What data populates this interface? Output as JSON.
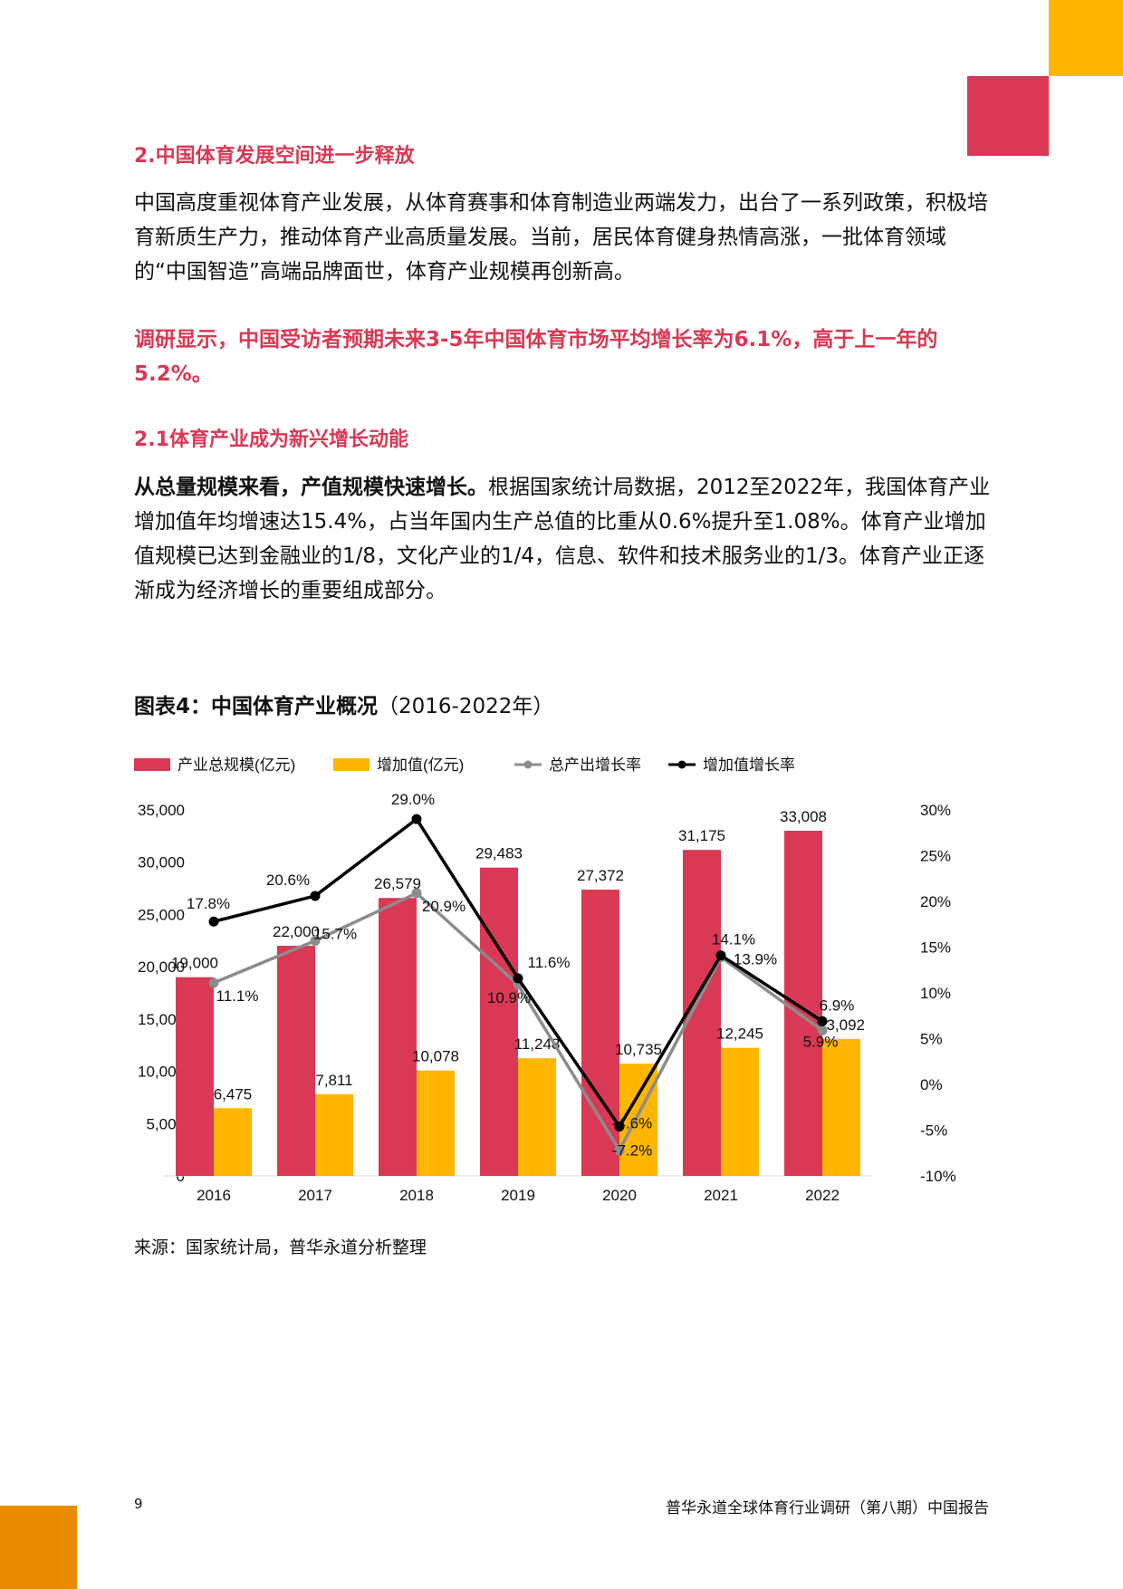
{
  "heading_2": "2.中国体育发展空间进一步释放",
  "paragraph_1": "中国高度重视体育产业发展，从体育赛事和体育制造业两端发力，出台了一系列政策，积极培育新质生产力，推动体育产业高质量发展。当前，居民体育健身热情高涨，一批体育领域的“中国智造”高端品牌面世，体育产业规模再创新高。",
  "highlight": "调研显示，中国受访者预期未来3-5年中国体育市场平均增长率为6.1%，高于上一年的5.2%。",
  "heading_2_1": "2.1体育产业成为新兴增长动能",
  "paragraph_2_bold": "从总量规模来看，产值规模快速增长。",
  "paragraph_2_rest": "根据国家统计局数据，2012至2022年，我国体育产业增加值年均增速达15.4%，占当年国内生产总值的比重从0.6%提升至1.08%。体育产业增加值规模已达到金融业的1/8，文化产业的1/4，信息、软件和技术服务业的1/3。体育产业正逐渐成为经济增长的重要组成部分。",
  "figure_title_bold": "图表4：中国体育产业概况",
  "figure_title_rest": "（2016-2022年）",
  "source": "来源：国家统计局，普华永道分析整理",
  "page_number": "9",
  "footer_title": "普华永道全球体育行业调研（第八期）中国报告",
  "colors": {
    "red": "#D93954",
    "yellow": "#FFB600",
    "orange": "#EB8C00",
    "gray_line": "#8C8C8C",
    "black_line": "#000000"
  },
  "chart_data": {
    "type": "bar",
    "categories": [
      "2016",
      "2017",
      "2018",
      "2019",
      "2020",
      "2021",
      "2022"
    ],
    "series": [
      {
        "name": "产业总规模(亿元)",
        "type": "bar",
        "axis": "left",
        "values": [
          19000,
          22000,
          26579,
          29483,
          27372,
          31175,
          33008
        ],
        "labels": [
          "19,000",
          "22,000",
          "26,579",
          "29,483",
          "27,372",
          "31,175",
          "33,008"
        ]
      },
      {
        "name": "增加值(亿元)",
        "type": "bar",
        "axis": "left",
        "values": [
          6475,
          7811,
          10078,
          11248,
          10735,
          12245,
          13092
        ],
        "labels": [
          "6,475",
          "7,811",
          "10,078",
          "11,248",
          "10,735",
          "12,245",
          "13,092"
        ]
      },
      {
        "name": "总产出增长率",
        "type": "line",
        "axis": "right",
        "values": [
          11.1,
          15.7,
          20.9,
          10.9,
          -7.2,
          13.9,
          5.9
        ],
        "labels": [
          "11.1%",
          "15.7%",
          "20.9%",
          "10.9%",
          "-7.2%",
          "13.9%",
          "5.9%"
        ]
      },
      {
        "name": "增加值增长率",
        "type": "line",
        "axis": "right",
        "values": [
          17.8,
          20.6,
          29.0,
          11.6,
          -4.6,
          14.1,
          6.9
        ],
        "labels": [
          "17.8%",
          "20.6%",
          "29.0%",
          "11.6%",
          "-4.6%",
          "14.1%",
          "6.9%"
        ]
      }
    ],
    "y_left": {
      "min": 0,
      "max": 35000,
      "ticks": [
        "35,000",
        "30,000",
        "25,000",
        "20,000",
        "15,000",
        "10,000",
        "5,000",
        "0"
      ]
    },
    "y_right": {
      "min": -10,
      "max": 30,
      "ticks": [
        "30%",
        "25%",
        "20%",
        "15%",
        "10%",
        "5%",
        "0%",
        "-5%",
        "-10%"
      ]
    },
    "legend": "top",
    "grid": false
  }
}
